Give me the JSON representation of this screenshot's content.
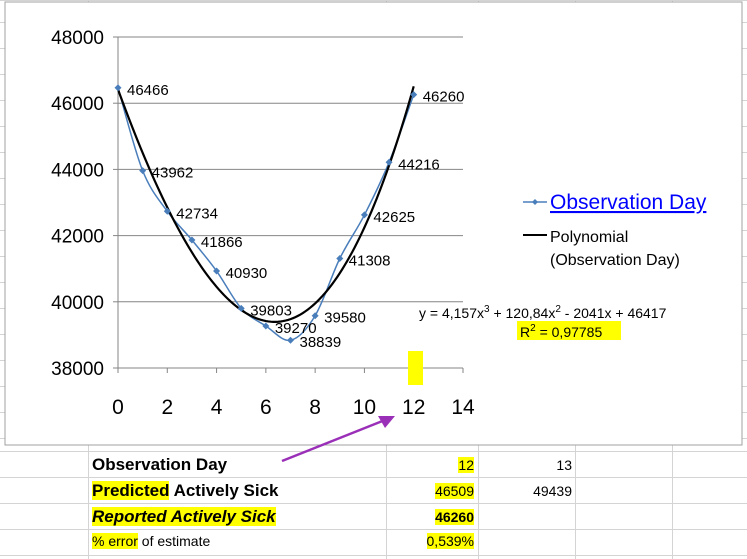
{
  "chart_data": {
    "type": "scatter",
    "x": [
      0,
      1,
      2,
      3,
      4,
      5,
      6,
      7,
      8,
      9,
      10,
      11,
      12
    ],
    "y": [
      46466,
      43962,
      42734,
      41866,
      40930,
      39803,
      39270,
      38839,
      39580,
      41308,
      42625,
      44216,
      46260
    ],
    "point_labels": [
      "46466",
      "43962",
      "42734",
      "41866",
      "40930",
      "39803",
      "39270",
      "38839",
      "39580",
      "41308",
      "42625",
      "44216",
      "46260"
    ],
    "xlim": [
      0,
      14
    ],
    "ylim": [
      38000,
      48000
    ],
    "x_ticks": [
      "0",
      "2",
      "4",
      "6",
      "8",
      "10",
      "12",
      "14"
    ],
    "y_ticks": [
      "38000",
      "40000",
      "42000",
      "44000",
      "46000",
      "48000"
    ],
    "grid": "horizontal",
    "legend_position": "right",
    "series": [
      {
        "name": "Observation Day",
        "color": "#4a7ebb"
      },
      {
        "name": "Polynomial (Observation Day)",
        "name_line1": "Polynomial",
        "name_line2": "(Observation Day)",
        "color": "#000000"
      }
    ],
    "trendline": {
      "coefficients": [
        4.157,
        120.84,
        -2041,
        46417
      ]
    },
    "equation": {
      "prefix": "y = 4,157x",
      "e1": "3",
      "mid": " + 120,84x",
      "e2": "2",
      "suffix": " - 2041x + 46417"
    },
    "r_squared": {
      "prefix": "R",
      "exp": "2",
      "suffix": " = 0,97785"
    }
  },
  "table": {
    "rows": [
      {
        "label": "Observation Day",
        "c1": "12",
        "c2": "13"
      },
      {
        "label_hl": "Predicted",
        "label_rest": " Actively Sick",
        "c1": "46509",
        "c2": "49439"
      },
      {
        "label": "Reported Actively Sick",
        "c1": "46260"
      },
      {
        "label_hl": "% error",
        "label_rest": " of estimate",
        "c1": "0,539%"
      }
    ]
  },
  "colors": {
    "highlight": "#ffff00",
    "arrow": "#9b30b8",
    "series": "#4a7ebb"
  }
}
